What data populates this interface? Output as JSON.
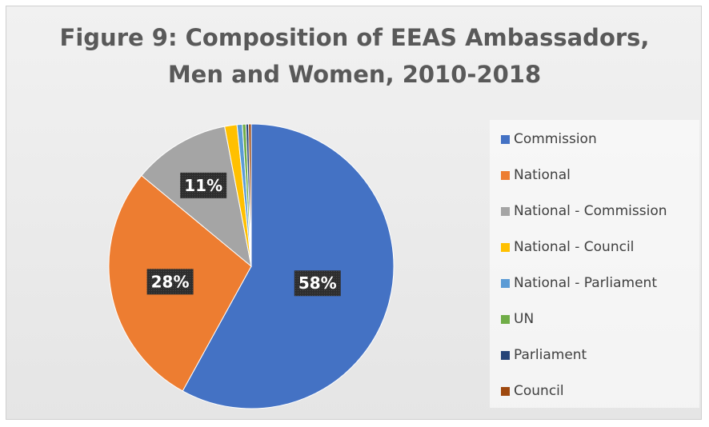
{
  "chart_data": {
    "type": "pie",
    "title": "Figure 9: Composition of EEAS Ambassadors, Men and Women, 2010-2018",
    "title_lines": [
      "Figure 9: Composition of EEAS Ambassadors,",
      "Men and Women, 2010-2018"
    ],
    "categories": [
      "Commission",
      "National",
      "National - Commission",
      "National - Council",
      "National - Parliament",
      "UN",
      "Parliament",
      "Council"
    ],
    "values": [
      58,
      28,
      11,
      1.4,
      0.6,
      0.4,
      0.3,
      0.3
    ],
    "data_labels": [
      "58%",
      "28%",
      "11%",
      "",
      "",
      "",
      "",
      ""
    ],
    "colors": [
      "#4472c4",
      "#ed7d31",
      "#a5a5a5",
      "#ffc000",
      "#5b9bd5",
      "#70ad47",
      "#264478",
      "#9e480e"
    ],
    "legend_position": "right",
    "start_angle_deg": 0,
    "direction": "clockwise"
  }
}
